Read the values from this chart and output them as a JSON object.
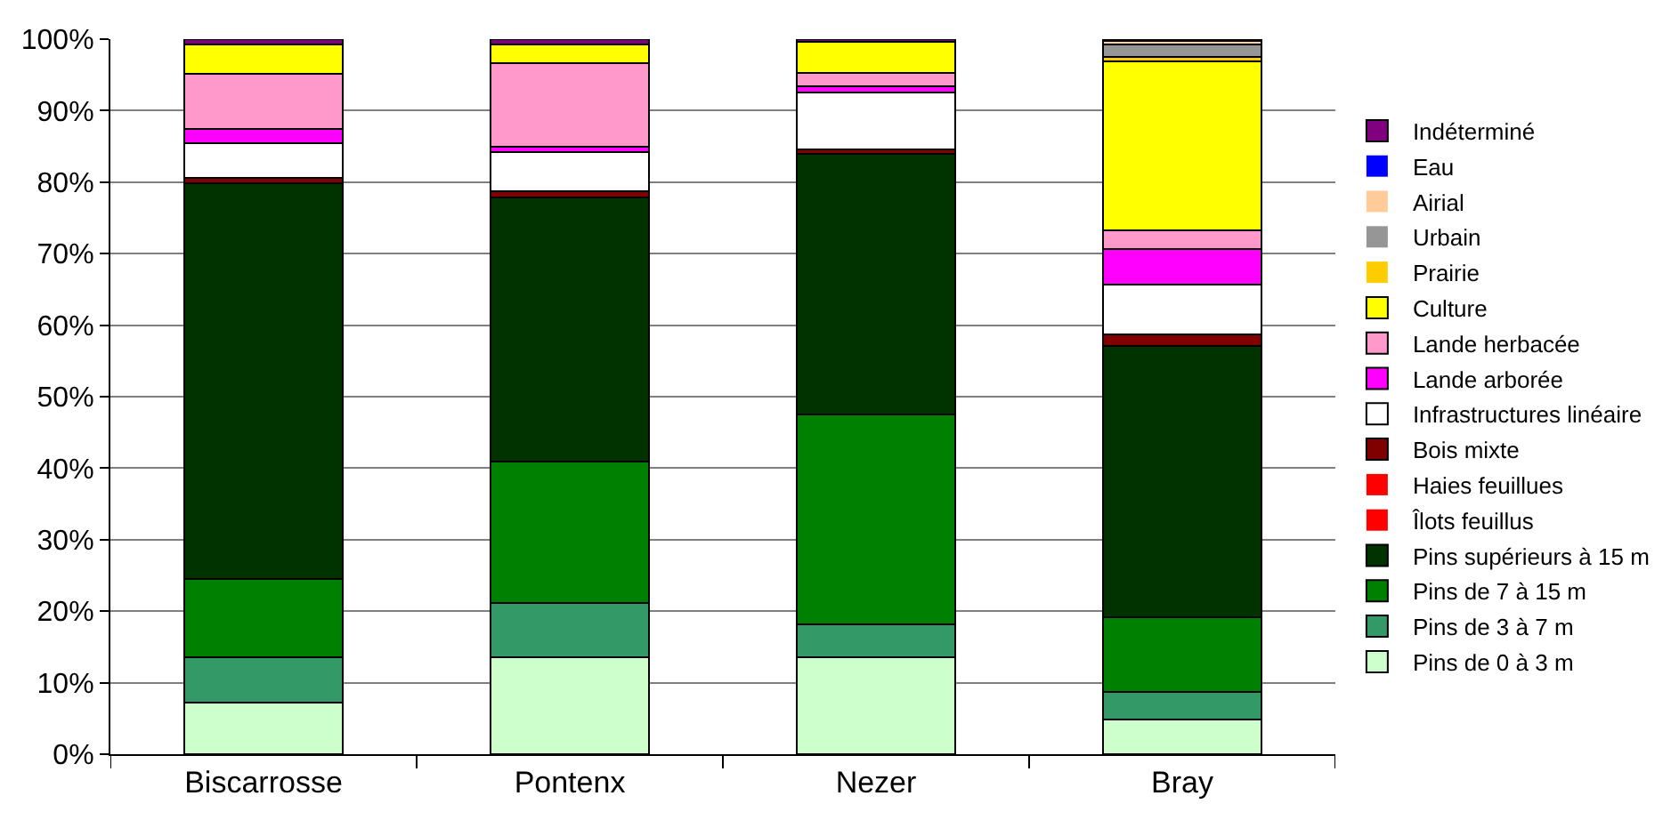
{
  "chart_data": {
    "type": "bar",
    "stacked": true,
    "categories": [
      "Biscarrosse",
      "Pontenx",
      "Nezer",
      "Bray"
    ],
    "ylim": [
      0,
      100
    ],
    "yticks": [
      {
        "value": 0,
        "label": "0%"
      },
      {
        "value": 10,
        "label": "10%"
      },
      {
        "value": 20,
        "label": "20%"
      },
      {
        "value": 30,
        "label": "30%"
      },
      {
        "value": 40,
        "label": "40%"
      },
      {
        "value": 50,
        "label": "50%"
      },
      {
        "value": 60,
        "label": "60%"
      },
      {
        "value": 70,
        "label": "70%"
      },
      {
        "value": 80,
        "label": "80%"
      },
      {
        "value": 90,
        "label": "90%"
      },
      {
        "value": 100,
        "label": "100%"
      }
    ],
    "grid": "y",
    "legend": "right",
    "series": [
      {
        "name": "Pins de 0 à 3 m",
        "color": "#ccffcc",
        "values": [
          7.2,
          13.5,
          13.5,
          4.9
        ]
      },
      {
        "name": "Pins de 3 à 7 m",
        "color": "#339966",
        "values": [
          6.3,
          7.7,
          4.7,
          3.8
        ]
      },
      {
        "name": "Pins de 7 à 15 m",
        "color": "#008000",
        "values": [
          11.0,
          19.7,
          29.3,
          10.4
        ]
      },
      {
        "name": "Pins supérieurs à 15 m",
        "color": "#003300",
        "values": [
          55.3,
          36.9,
          36.5,
          38.0
        ]
      },
      {
        "name": "Îlots feuillus",
        "color": "#ff0000",
        "values": [
          0,
          0,
          0,
          0
        ]
      },
      {
        "name": "Haies feuillues",
        "color": "#ff0000",
        "values": [
          0,
          0,
          0,
          0
        ]
      },
      {
        "name": "Bois mixte",
        "color": "#800000",
        "values": [
          0.8,
          0.9,
          0.6,
          1.6
        ]
      },
      {
        "name": "Infrastructures linéaire",
        "color": "#ffffff",
        "values": [
          4.9,
          5.5,
          8.0,
          7.0
        ]
      },
      {
        "name": "Lande arborée",
        "color": "#ff00ff",
        "values": [
          2.0,
          0.8,
          0.8,
          4.9
        ]
      },
      {
        "name": "Lande herbacée",
        "color": "#ff99cc",
        "values": [
          7.7,
          11.6,
          1.9,
          2.6
        ]
      },
      {
        "name": "Culture",
        "color": "#ffff00",
        "values": [
          4.0,
          2.7,
          4.3,
          23.7
        ]
      },
      {
        "name": "Prairie",
        "color": "#ffcc00",
        "values": [
          0,
          0,
          0,
          0.6
        ]
      },
      {
        "name": "Urbain",
        "color": "#969696",
        "values": [
          0,
          0,
          0,
          1.7
        ]
      },
      {
        "name": "Airial",
        "color": "#ffcc99",
        "values": [
          0,
          0,
          0,
          0.5
        ]
      },
      {
        "name": "Eau",
        "color": "#0000ff",
        "values": [
          0,
          0,
          0,
          0
        ]
      },
      {
        "name": "Indéterminé",
        "color": "#800080",
        "values": [
          0.8,
          0.7,
          0.4,
          0.3
        ]
      }
    ]
  }
}
